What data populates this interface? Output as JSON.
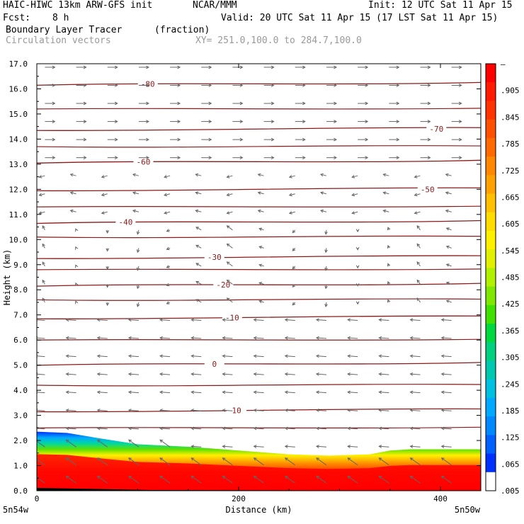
{
  "header": {
    "model": "HAIC-HIWC 13km ARW-GFS init",
    "org": "NCAR/MMM",
    "init": "Init: 12 UTC Sat 11 Apr 15",
    "fcst_label": "Fcst:",
    "fcst_value": "8 h",
    "valid": "Valid: 20 UTC Sat 11 Apr 15 (17 LST Sat 11 Apr 15)",
    "field": "Boundary Layer Tracer",
    "units": "(fraction)",
    "vectors": "Circulation vectors",
    "xy": "XY= 251.0,100.0 to 284.7,100.0"
  },
  "chart_data": {
    "type": "heatmap",
    "xlabel": "Distance (km)",
    "ylabel": "Height (km)",
    "xlim": [
      0,
      440
    ],
    "ylim": [
      0,
      17
    ],
    "x_ticks": [
      "0",
      "200",
      "400"
    ],
    "x_tick_values": [
      0,
      200,
      400
    ],
    "y_ticks": [
      "0.0",
      "1.0",
      "2.0",
      "3.0",
      "4.0",
      "5.0",
      "6.0",
      "7.0",
      "8.0",
      "9.0",
      "10.0",
      "11.0",
      "12.0",
      "13.0",
      "14.0",
      "15.0",
      "16.0",
      "17.0"
    ],
    "endpoint_left": "5n54w",
    "endpoint_right": "5n50w",
    "tracer_top_km": [
      {
        "x": 0,
        "y": 2.35
      },
      {
        "x": 30,
        "y": 2.3
      },
      {
        "x": 60,
        "y": 2.1
      },
      {
        "x": 100,
        "y": 1.85
      },
      {
        "x": 150,
        "y": 1.75
      },
      {
        "x": 200,
        "y": 1.6
      },
      {
        "x": 250,
        "y": 1.45
      },
      {
        "x": 290,
        "y": 1.4
      },
      {
        "x": 330,
        "y": 1.45
      },
      {
        "x": 350,
        "y": 1.6
      },
      {
        "x": 370,
        "y": 1.65
      },
      {
        "x": 440,
        "y": 1.65
      }
    ],
    "temperature_contours": [
      {
        "label": "-80",
        "y": 16.2
      },
      {
        "label": "-70",
        "y": 14.4
      },
      {
        "label": "-60",
        "y": 13.1
      },
      {
        "label": "-50",
        "y": 12.0
      },
      {
        "label": "-40",
        "y": 10.7
      },
      {
        "label": "-30",
        "y": 9.3
      },
      {
        "label": "-20",
        "y": 8.2
      },
      {
        "label": "-10",
        "y": 6.9
      },
      {
        "label": "0",
        "y": 5.05
      },
      {
        "label": "10",
        "y": 3.2
      }
    ],
    "colorbar": {
      "labels": [
        "–",
        ".905",
        ".845",
        ".785",
        ".725",
        ".665",
        ".605",
        ".545",
        ".485",
        ".425",
        ".365",
        ".305",
        ".245",
        ".185",
        ".125",
        ".065",
        ".005"
      ],
      "colors": [
        "#ff0000",
        "#ff1a00",
        "#ff3300",
        "#ff5000",
        "#ff6a00",
        "#ff8800",
        "#ffa200",
        "#ffc000",
        "#ffdc00",
        "#fff000",
        "#e0f000",
        "#b0f000",
        "#80e800",
        "#40e000",
        "#00d840",
        "#00d080",
        "#00c8b0",
        "#00c0e0",
        "#00a8ff",
        "#0088ff",
        "#0060ff",
        "#0030ff",
        "#ffffff"
      ]
    },
    "colors": {
      "contour": "#8b1a1a",
      "vector": "#666666",
      "frame": "#000000"
    }
  }
}
